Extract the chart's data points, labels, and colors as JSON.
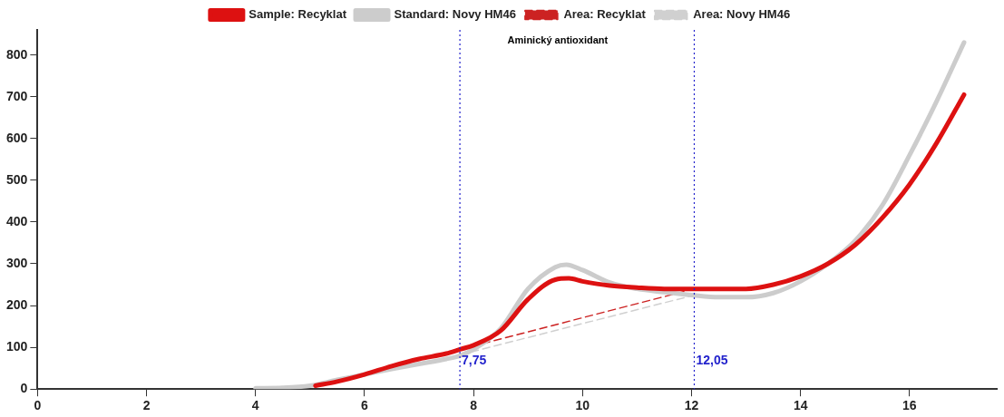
{
  "chart_data": {
    "type": "line",
    "annotations": [
      "Aminický antioxidant"
    ],
    "xlim": [
      0,
      17.6
    ],
    "xticks": [
      0,
      2,
      4,
      6,
      8,
      10,
      12,
      14,
      16
    ],
    "ylim": [
      0,
      860
    ],
    "yticks": [
      0,
      100,
      200,
      300,
      400,
      500,
      600,
      700,
      800
    ],
    "grid": false,
    "legend": "top",
    "marker": "none",
    "ref_lines": [
      {
        "axis": "x",
        "value": 7.75,
        "label": "7,75",
        "color": "#2222cc",
        "line_style": "dotted"
      },
      {
        "axis": "x",
        "value": 12.05,
        "label": "12,05",
        "color": "#2222cc",
        "line_style": "dotted"
      }
    ],
    "series": [
      {
        "name": "Area: Recyklat",
        "color": "#cc2222",
        "line_style": "dashed",
        "x": [
          7.75,
          12.05
        ],
        "values": [
          95,
          240
        ]
      },
      {
        "name": "Area: Novy HM46",
        "color": "#d0d0d0",
        "line_style": "dashed",
        "x": [
          7.75,
          12.05
        ],
        "values": [
          82,
          225
        ]
      },
      {
        "name": "Sample: Recyklat",
        "color": "#dd1111",
        "line_style": "solid",
        "x": [
          5.1,
          5.5,
          6,
          6.5,
          7,
          7.5,
          7.75,
          8,
          8.5,
          9,
          9.5,
          9.75,
          10,
          10.5,
          11,
          11.5,
          12,
          12.5,
          13,
          13.5,
          14,
          14.5,
          15,
          15.5,
          16,
          16.5,
          17
        ],
        "values": [
          8,
          18,
          35,
          55,
          72,
          85,
          95,
          105,
          140,
          215,
          262,
          265,
          258,
          248,
          243,
          240,
          240,
          240,
          240,
          250,
          270,
          300,
          345,
          410,
          490,
          590,
          705
        ]
      },
      {
        "name": "Standard: Novy HM46",
        "color": "#cccccc",
        "line_style": "solid",
        "x": [
          4,
          4.5,
          5,
          5.5,
          6,
          6.5,
          7,
          7.5,
          7.75,
          8,
          8.5,
          9,
          9.5,
          9.7,
          10,
          10.5,
          11,
          11.5,
          12,
          12.5,
          13,
          13.5,
          14,
          14.5,
          15,
          15.5,
          16,
          16.5,
          17
        ],
        "values": [
          2,
          3,
          8,
          22,
          35,
          48,
          60,
          72,
          80,
          95,
          145,
          240,
          292,
          298,
          285,
          255,
          240,
          232,
          225,
          220,
          220,
          230,
          258,
          300,
          355,
          440,
          560,
          690,
          830
        ]
      }
    ]
  }
}
